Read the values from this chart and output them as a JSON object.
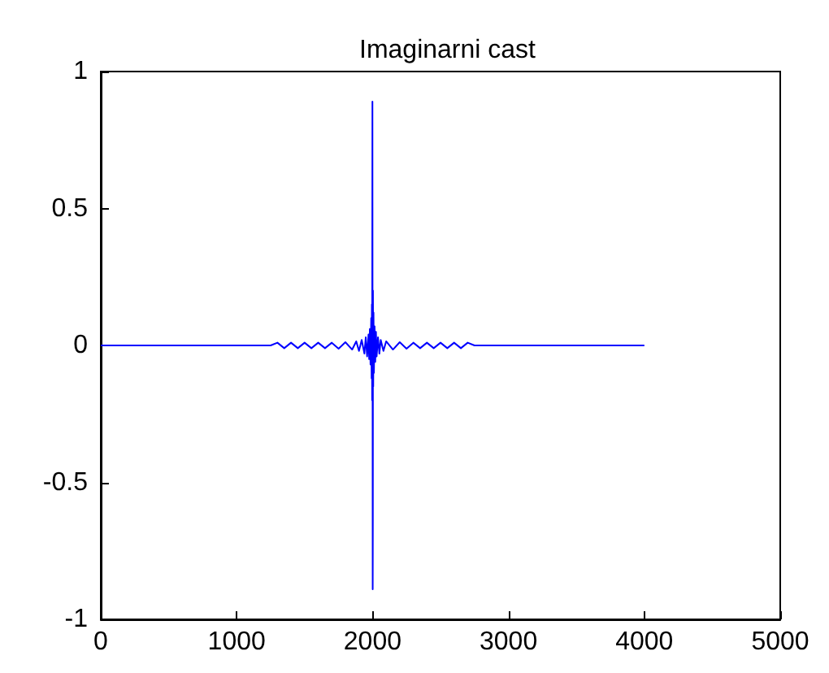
{
  "chart_data": {
    "type": "line",
    "title": "Imaginarni cast",
    "x": [
      0,
      1250,
      1300,
      1350,
      1400,
      1450,
      1500,
      1550,
      1600,
      1650,
      1700,
      1750,
      1800,
      1850,
      1880,
      1900,
      1920,
      1940,
      1950,
      1960,
      1970,
      1975,
      1980,
      1985,
      1990,
      1993,
      1995,
      1997,
      1998,
      1999,
      2000,
      2001,
      2002,
      2003,
      2005,
      2007,
      2010,
      2015,
      2020,
      2025,
      2030,
      2040,
      2050,
      2060,
      2080,
      2100,
      2150,
      2200,
      2250,
      2300,
      2350,
      2400,
      2450,
      2500,
      2550,
      2600,
      2650,
      2700,
      2750,
      4000
    ],
    "series": [
      {
        "color": "#0000ff",
        "values": [
          0,
          0,
          0.01,
          -0.01,
          0.01,
          -0.01,
          0.01,
          -0.01,
          0.01,
          -0.01,
          0.01,
          -0.012,
          0.012,
          -0.015,
          0.015,
          -0.02,
          0.02,
          -0.03,
          0.03,
          -0.04,
          0.04,
          -0.05,
          0.06,
          -0.07,
          0.1,
          -0.12,
          0.15,
          -0.2,
          0.35,
          0.89,
          0,
          -0.89,
          -0.63,
          0.2,
          -0.15,
          0.12,
          -0.1,
          0.07,
          -0.06,
          0.05,
          -0.04,
          0.03,
          -0.03,
          0.02,
          -0.02,
          0.015,
          -0.015,
          0.012,
          -0.012,
          0.01,
          -0.01,
          0.01,
          -0.01,
          0.01,
          -0.01,
          0.01,
          -0.01,
          0.01,
          0,
          0
        ]
      }
    ],
    "xlim": [
      0,
      5000
    ],
    "xticks": [
      0,
      1000,
      2000,
      3000,
      4000,
      5000
    ],
    "ylim": [
      -1,
      1
    ],
    "yticks": [
      -1,
      -0.5,
      0,
      0.5,
      1
    ],
    "grid": false,
    "marker": "none",
    "line_style": "solid"
  }
}
